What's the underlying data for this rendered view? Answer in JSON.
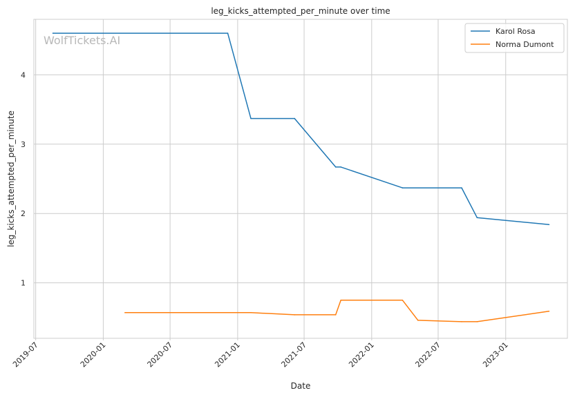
{
  "chart_data": {
    "type": "line",
    "title": "leg_kicks_attempted_per_minute over time",
    "xlabel": "Date",
    "ylabel": "leg_kicks_attempted_per_minute",
    "watermark": "WolfTickets.AI",
    "xlim": [
      "2019-06-26",
      "2023-06-18"
    ],
    "ylim": [
      0.2,
      4.8
    ],
    "grid": true,
    "legend_position": "top-right",
    "x_ticks": [
      "2019-07-01",
      "2020-01-01",
      "2020-07-01",
      "2021-01-01",
      "2021-07-01",
      "2022-01-01",
      "2022-07-01",
      "2023-01-01"
    ],
    "x_tick_labels": [
      "2019-07",
      "2020-01",
      "2020-07",
      "2021-01",
      "2021-07",
      "2022-01",
      "2022-07",
      "2023-01"
    ],
    "y_ticks": [
      1,
      2,
      3,
      4
    ],
    "y_tick_labels": [
      "1",
      "2",
      "3",
      "4"
    ],
    "series": [
      {
        "name": "Karol Rosa",
        "color": "#1f77b4",
        "x": [
          "2019-08-17",
          "2020-12-05",
          "2021-02-06",
          "2021-06-05",
          "2021-09-25",
          "2021-10-09",
          "2022-03-26",
          "2022-09-03",
          "2022-10-15",
          "2023-04-29"
        ],
        "y": [
          4.6,
          4.6,
          3.37,
          3.37,
          2.67,
          2.67,
          2.37,
          2.37,
          1.94,
          1.84
        ]
      },
      {
        "name": "Norma Dumont",
        "color": "#ff7f0e",
        "x": [
          "2020-02-29",
          "2021-02-06",
          "2021-06-05",
          "2021-09-25",
          "2021-10-09",
          "2022-03-26",
          "2022-05-07",
          "2022-09-03",
          "2022-10-15",
          "2023-04-29"
        ],
        "y": [
          0.57,
          0.57,
          0.54,
          0.54,
          0.75,
          0.75,
          0.46,
          0.44,
          0.44,
          0.59
        ]
      }
    ]
  }
}
